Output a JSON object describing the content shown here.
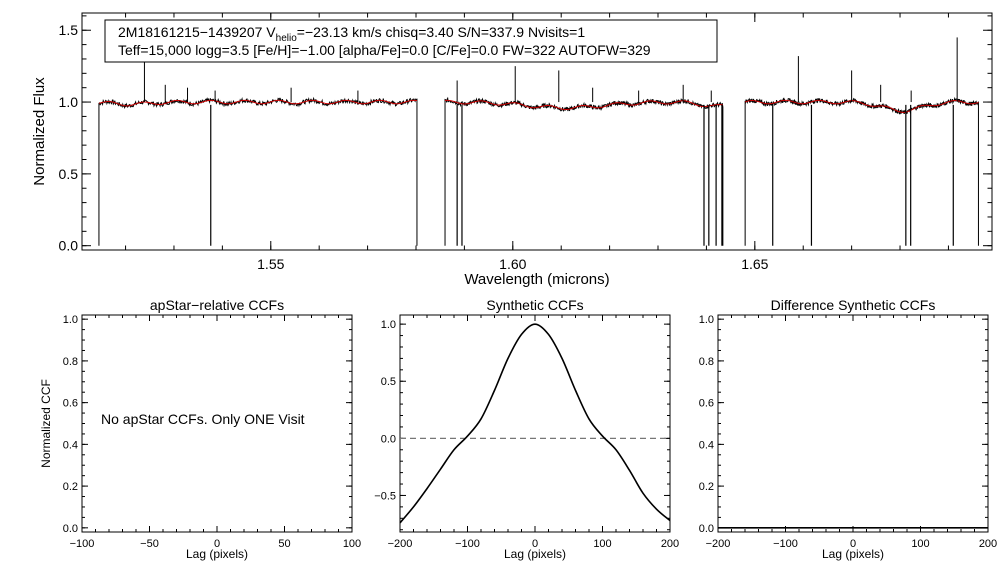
{
  "colors": {
    "axis": "#000000",
    "data": "#000000",
    "model": "#cc0000",
    "dashed": "#777777"
  },
  "chart_data": [
    {
      "type": "line",
      "panel": "spectrum",
      "title": "",
      "xlabel": "Wavelength (microns)",
      "ylabel": "Normalized Flux",
      "xlim": [
        1.511,
        1.699
      ],
      "ylim": [
        -0.03,
        1.62
      ],
      "xticks": [
        "1.55",
        "1.60",
        "1.65"
      ],
      "xtick_values": [
        1.55,
        1.6,
        1.65
      ],
      "yticks": [
        "0.0",
        "0.5",
        "1.0",
        "1.5"
      ],
      "ytick_values": [
        0.0,
        0.5,
        1.0,
        1.5
      ],
      "info_line1_parts": [
        "2M18161215−1439207  V",
        "helio",
        "=−23.13 km/s  chisq=3.40  S/N=337.9  Nvisits=1"
      ],
      "info_line2": "Teff=15,000 logg=3.5 [Fe/H]=−1.00 [alpha/Fe]=0.0 [C/Fe]=0.0 FW=322 AUTOFW=329",
      "chips": [
        [
          1.5145,
          1.5802
        ],
        [
          1.586,
          1.6434
        ],
        [
          1.648,
          1.6962
        ]
      ],
      "continuum": 1.0,
      "emission_lines": [
        [
          1.5239,
          1.28
        ],
        [
          1.5282,
          1.12
        ],
        [
          1.5328,
          1.1
        ],
        [
          1.5385,
          1.08
        ],
        [
          1.5542,
          1.1
        ],
        [
          1.568,
          1.08
        ],
        [
          1.5885,
          1.15
        ],
        [
          1.6005,
          1.25
        ],
        [
          1.6095,
          1.22
        ],
        [
          1.6165,
          1.1
        ],
        [
          1.626,
          1.08
        ],
        [
          1.6352,
          1.12
        ],
        [
          1.641,
          1.08
        ],
        [
          1.659,
          1.32
        ],
        [
          1.67,
          1.22
        ],
        [
          1.676,
          1.12
        ],
        [
          1.6823,
          1.08
        ],
        [
          1.6918,
          1.45
        ]
      ],
      "dropouts": [
        1.5376,
        1.5885,
        1.5895,
        1.6395,
        1.6405,
        1.642,
        1.6432,
        1.6537,
        1.6617,
        1.6812,
        1.6822,
        1.691
      ],
      "absorption_dips": [
        [
          1.521,
          0.015,
          0.004
        ],
        [
          1.611,
          0.04,
          0.008
        ],
        [
          1.642,
          0.03,
          0.003
        ],
        [
          1.6805,
          0.06,
          0.004
        ]
      ]
    },
    {
      "type": "text",
      "panel": "apstar",
      "title": "apStar−relative CCFs",
      "xlabel": "Lag (pixels)",
      "ylabel": "Normalized CCF",
      "xlim": [
        -100,
        100
      ],
      "ylim": [
        -0.02,
        1.02
      ],
      "xticks": [
        "−100",
        "−50",
        "0",
        "50",
        "100"
      ],
      "xtick_values": [
        -100,
        -50,
        0,
        50,
        100
      ],
      "yticks": [
        "0.0",
        "0.2",
        "0.4",
        "0.6",
        "0.8",
        "1.0"
      ],
      "ytick_values": [
        0.0,
        0.2,
        0.4,
        0.6,
        0.8,
        1.0
      ],
      "annotation": "No apStar CCFs.  Only ONE Visit"
    },
    {
      "type": "line",
      "panel": "synthetic",
      "title": "Synthetic CCFs",
      "xlabel": "Lag (pixels)",
      "ylabel": "",
      "xlim": [
        -200,
        200
      ],
      "ylim": [
        -0.82,
        1.08
      ],
      "xticks": [
        "−200",
        "−100",
        "0",
        "100",
        "200"
      ],
      "xtick_values": [
        -200,
        -100,
        0,
        100,
        200
      ],
      "yticks": [
        "−0.5",
        "0.0",
        "0.5",
        "1.0"
      ],
      "ytick_values": [
        -0.5,
        0.0,
        0.5,
        1.0
      ],
      "x": [
        -200,
        -180,
        -160,
        -140,
        -120,
        -100,
        -80,
        -60,
        -40,
        -20,
        0,
        20,
        40,
        60,
        80,
        100,
        120,
        140,
        160,
        180,
        200
      ],
      "y": [
        -0.74,
        -0.6,
        -0.44,
        -0.27,
        -0.1,
        0.02,
        0.17,
        0.42,
        0.7,
        0.91,
        1.0,
        0.91,
        0.7,
        0.42,
        0.17,
        0.02,
        -0.1,
        -0.28,
        -0.48,
        -0.62,
        -0.72
      ],
      "zero_line": 0.0
    },
    {
      "type": "line",
      "panel": "difference",
      "title": "Difference Synthetic CCFs",
      "xlabel": "Lag (pixels)",
      "ylabel": "",
      "xlim": [
        -200,
        200
      ],
      "ylim": [
        -0.02,
        1.02
      ],
      "xticks": [
        "−200",
        "−100",
        "0",
        "100",
        "200"
      ],
      "xtick_values": [
        -200,
        -100,
        0,
        100,
        200
      ],
      "yticks": [
        "0.0",
        "0.2",
        "0.4",
        "0.6",
        "0.8",
        "1.0"
      ],
      "ytick_values": [
        0.0,
        0.2,
        0.4,
        0.6,
        0.8,
        1.0
      ],
      "x": [
        -200,
        200
      ],
      "y": [
        0.0,
        0.0
      ]
    }
  ]
}
